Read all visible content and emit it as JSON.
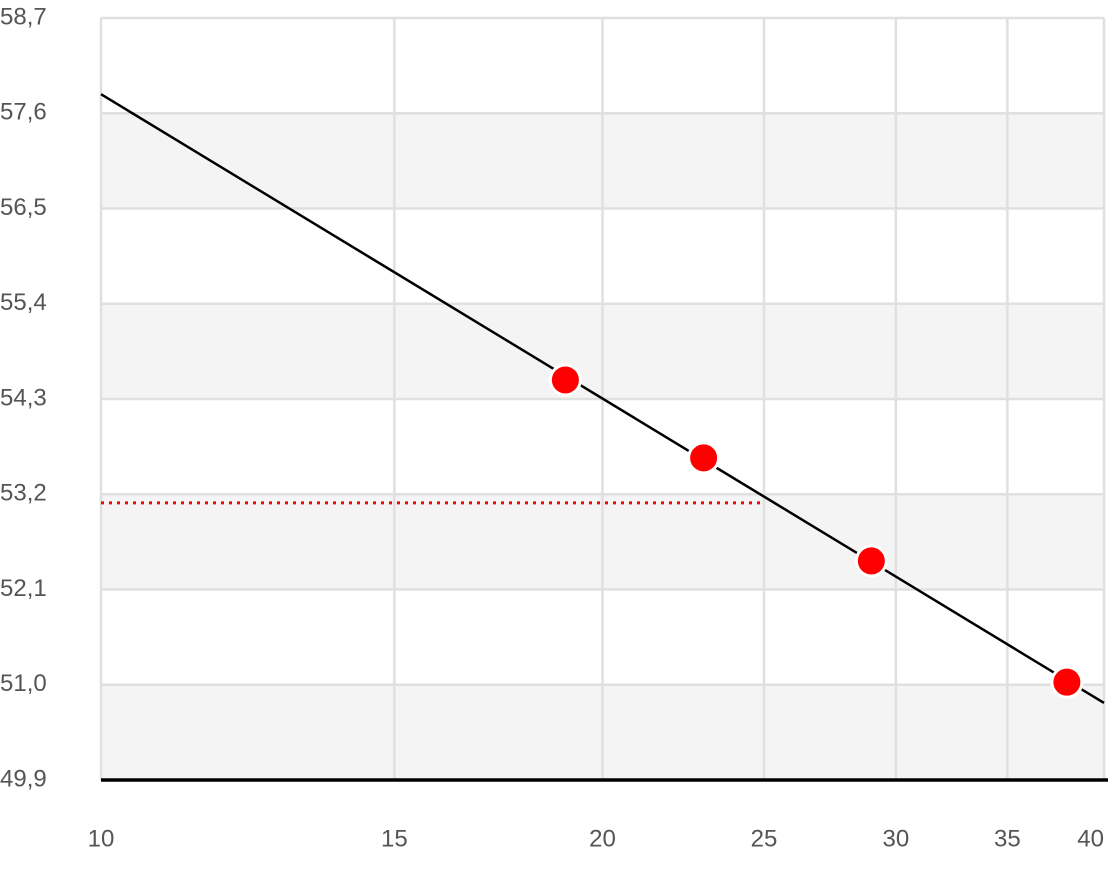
{
  "chart_data": {
    "type": "scatter",
    "xscale": "log",
    "xlim": [
      10,
      40
    ],
    "xticks": [
      10,
      15,
      20,
      25,
      30,
      35,
      40
    ],
    "ylim": [
      49.9,
      58.7
    ],
    "yticks": [
      {
        "value": 49.9,
        "label": "49,9"
      },
      {
        "value": 51.0,
        "label": "51,0"
      },
      {
        "value": 52.1,
        "label": "52,1"
      },
      {
        "value": 53.2,
        "label": "53,2"
      },
      {
        "value": 54.3,
        "label": "54,3"
      },
      {
        "value": 55.4,
        "label": "55,4"
      },
      {
        "value": 56.5,
        "label": "56,5"
      },
      {
        "value": 57.6,
        "label": "57,6"
      },
      {
        "value": 58.7,
        "label": "58,7"
      }
    ],
    "grid": true,
    "bands": true,
    "series": [
      {
        "style": "line",
        "color": "#000000",
        "x": [
          10,
          40
        ],
        "values": [
          57.82,
          50.79
        ]
      },
      {
        "style": "dotted",
        "color": "#ff0000",
        "x": [
          10,
          25
        ],
        "values": [
          53.1,
          53.1
        ]
      },
      {
        "style": "markers",
        "color": "#ff0000",
        "x": [
          19,
          23,
          29,
          38
        ],
        "values": [
          54.52,
          53.62,
          52.43,
          51.03
        ]
      }
    ]
  }
}
